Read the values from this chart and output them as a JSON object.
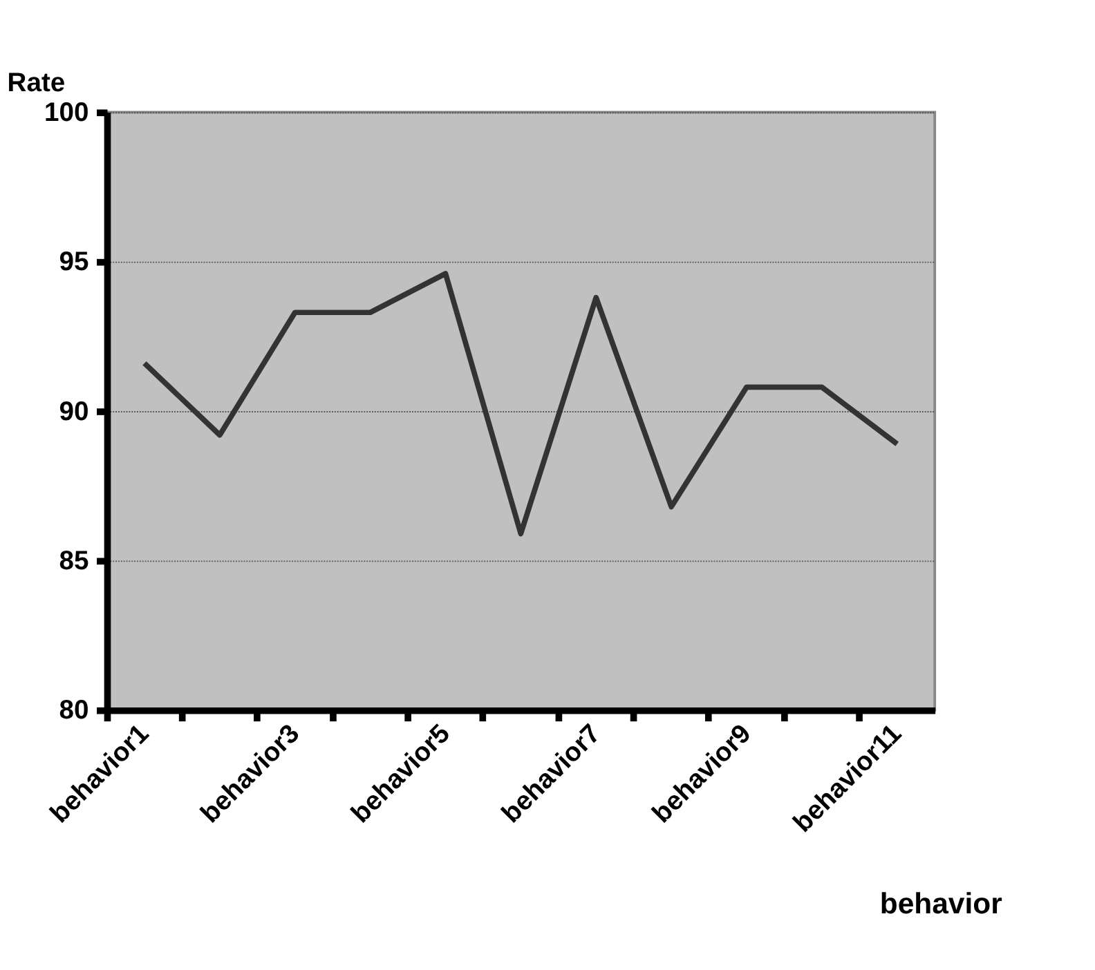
{
  "chart_data": {
    "type": "line",
    "xlabel": "behavior",
    "ylabel": "Rate",
    "categories": [
      "behavior1",
      null,
      "behavior3",
      null,
      "behavior5",
      null,
      "behavior7",
      null,
      "behavior9",
      null,
      "behavior11"
    ],
    "series": [
      {
        "color": "#333333",
        "values": [
          91.6,
          89.2,
          93.3,
          93.3,
          94.6,
          85.9,
          93.8,
          86.8,
          90.8,
          90.8,
          88.9
        ]
      }
    ],
    "ylim": [
      80,
      100
    ],
    "yticks": [
      80,
      85,
      90,
      95,
      100
    ],
    "grid": "y",
    "legend": false,
    "marker": "none",
    "line_style": "solid"
  }
}
